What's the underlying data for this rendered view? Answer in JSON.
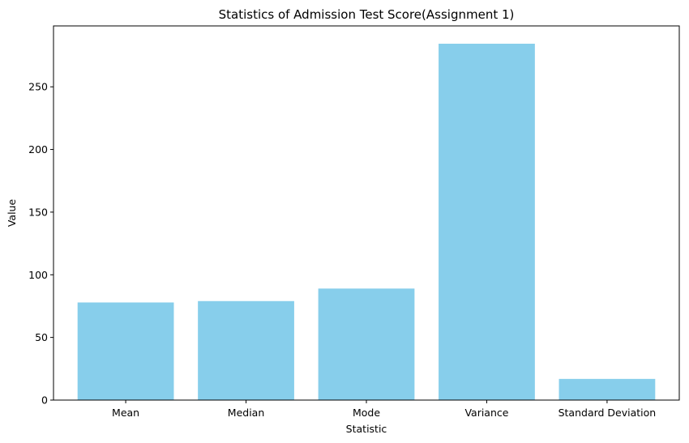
{
  "chart_data": {
    "type": "bar",
    "title": "Statistics of Admission Test Score(Assignment 1)",
    "xlabel": "Statistic",
    "ylabel": "Value",
    "categories": [
      "Mean",
      "Median",
      "Mode",
      "Variance",
      "Standard Deviation"
    ],
    "values": [
      77.9,
      79.0,
      89.0,
      284.4,
      16.9
    ],
    "ylim": [
      0,
      298.6
    ],
    "yticks": [
      0,
      50,
      100,
      150,
      200,
      250
    ],
    "bar_color": "#87CEEB",
    "grid": false,
    "legend": "none"
  }
}
